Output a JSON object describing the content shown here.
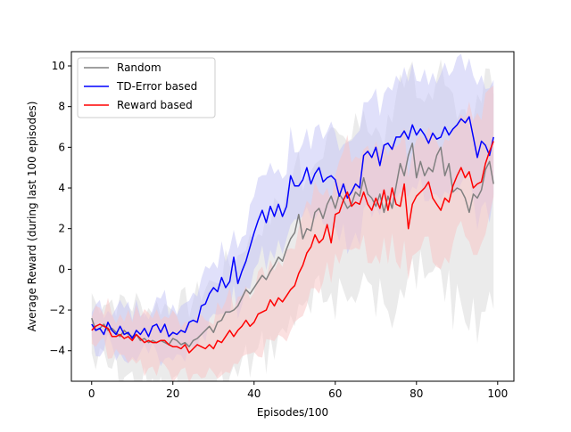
{
  "chart_data": {
    "type": "line",
    "title": "",
    "xlabel": "Episodes/100",
    "ylabel": "Average Reward (during last 100 episodes)",
    "xlim": [
      -5,
      104
    ],
    "ylim": [
      -5.5,
      10.7
    ],
    "xticks": [
      0,
      20,
      40,
      60,
      80,
      100
    ],
    "yticks": [
      -4,
      -2,
      0,
      2,
      4,
      6,
      8,
      10
    ],
    "grid": false,
    "legend_position": "top-left",
    "x": [
      0,
      1,
      2,
      3,
      4,
      5,
      6,
      7,
      8,
      9,
      10,
      11,
      12,
      13,
      14,
      15,
      16,
      17,
      18,
      19,
      20,
      21,
      22,
      23,
      24,
      25,
      26,
      27,
      28,
      29,
      30,
      31,
      32,
      33,
      34,
      35,
      36,
      37,
      38,
      39,
      40,
      41,
      42,
      43,
      44,
      45,
      46,
      47,
      48,
      49,
      50,
      51,
      52,
      53,
      54,
      55,
      56,
      57,
      58,
      59,
      60,
      61,
      62,
      63,
      64,
      65,
      66,
      67,
      68,
      69,
      70,
      71,
      72,
      73,
      74,
      75,
      76,
      77,
      78,
      79,
      80,
      81,
      82,
      83,
      84,
      85,
      86,
      87,
      88,
      89,
      90,
      91,
      92,
      93,
      94,
      95,
      96,
      97,
      98,
      99
    ],
    "series": [
      {
        "name": "Random",
        "color": "#808080",
        "band_color": "#d3d3d3",
        "values": [
          -2.4,
          -3.0,
          -2.9,
          -2.7,
          -3.0,
          -2.9,
          -3.1,
          -3.3,
          -3.0,
          -3.2,
          -3.3,
          -3.2,
          -3.5,
          -3.4,
          -3.6,
          -3.5,
          -3.6,
          -3.5,
          -3.6,
          -3.7,
          -3.4,
          -3.5,
          -3.7,
          -3.6,
          -3.8,
          -3.5,
          -3.4,
          -3.2,
          -3.0,
          -2.8,
          -3.1,
          -2.6,
          -2.5,
          -2.1,
          -2.1,
          -2.0,
          -1.8,
          -1.4,
          -1.0,
          -1.2,
          -0.9,
          -0.6,
          -0.3,
          -0.5,
          -0.1,
          0.2,
          0.6,
          0.4,
          1.0,
          1.5,
          1.8,
          2.7,
          1.5,
          2.0,
          1.9,
          2.8,
          3.0,
          2.5,
          3.2,
          3.6,
          3.0,
          3.7,
          3.4,
          3.0,
          3.2,
          3.8,
          3.6,
          4.5,
          3.7,
          3.5,
          3.1,
          3.7,
          2.8,
          3.6,
          3.0,
          4.1,
          5.2,
          4.6,
          5.6,
          6.2,
          4.5,
          5.3,
          4.6,
          5.0,
          4.8,
          5.6,
          6.0,
          4.6,
          5.2,
          3.8,
          4.0,
          3.9,
          3.5,
          2.8,
          3.7,
          3.5,
          3.9,
          4.9,
          5.3,
          4.2
        ]
      },
      {
        "name": "TD-Error based",
        "color": "#0000ff",
        "band_color": "#c6c6f5",
        "values": [
          -2.7,
          -3.0,
          -2.9,
          -3.2,
          -2.6,
          -3.0,
          -3.2,
          -2.8,
          -3.2,
          -3.1,
          -3.4,
          -3.0,
          -3.2,
          -2.9,
          -3.3,
          -2.8,
          -2.7,
          -3.1,
          -2.7,
          -3.3,
          -3.1,
          -3.2,
          -3.0,
          -3.1,
          -2.6,
          -2.5,
          -2.6,
          -1.8,
          -1.7,
          -1.2,
          -0.9,
          -1.1,
          -0.4,
          -0.9,
          -0.6,
          0.6,
          -0.7,
          -0.1,
          0.4,
          1.1,
          1.8,
          2.4,
          2.9,
          2.3,
          3.1,
          2.6,
          3.2,
          2.6,
          3.1,
          4.6,
          4.1,
          4.1,
          4.4,
          5.0,
          4.2,
          4.7,
          5.0,
          4.3,
          4.5,
          4.6,
          4.4,
          3.6,
          4.2,
          3.5,
          3.8,
          4.2,
          4.0,
          5.6,
          5.8,
          5.5,
          6.0,
          5.1,
          6.1,
          6.2,
          5.9,
          6.5,
          6.5,
          6.8,
          6.4,
          7.1,
          6.6,
          6.9,
          6.6,
          6.2,
          6.7,
          6.4,
          6.5,
          7.0,
          6.6,
          6.9,
          7.1,
          7.4,
          7.2,
          7.5,
          6.5,
          5.5,
          6.3,
          6.1,
          5.6,
          6.5
        ]
      },
      {
        "name": "Reward based",
        "color": "#ff0000",
        "band_color": "#f7c6c6",
        "values": [
          -3.0,
          -2.8,
          -2.7,
          -2.8,
          -2.9,
          -3.3,
          -3.3,
          -3.2,
          -3.4,
          -3.3,
          -3.5,
          -3.2,
          -3.4,
          -3.6,
          -3.5,
          -3.6,
          -3.6,
          -3.5,
          -3.5,
          -3.7,
          -3.8,
          -3.8,
          -3.9,
          -3.7,
          -4.1,
          -3.9,
          -3.7,
          -3.8,
          -3.9,
          -3.7,
          -3.9,
          -3.5,
          -3.6,
          -3.3,
          -3.0,
          -3.3,
          -3.0,
          -2.8,
          -2.5,
          -2.8,
          -2.6,
          -2.2,
          -2.1,
          -2.0,
          -1.5,
          -1.8,
          -1.4,
          -1.6,
          -1.3,
          -1.0,
          -0.8,
          -0.2,
          0.2,
          0.8,
          1.1,
          1.7,
          1.3,
          1.5,
          2.2,
          1.3,
          2.7,
          2.8,
          3.4,
          3.8,
          3.1,
          3.3,
          3.2,
          3.8,
          3.2,
          2.9,
          3.5,
          3.0,
          3.9,
          2.9,
          4.0,
          3.2,
          3.1,
          4.2,
          2.0,
          3.2,
          3.6,
          3.8,
          4.0,
          4.3,
          3.5,
          3.2,
          2.9,
          3.5,
          3.3,
          4.1,
          4.6,
          5.0,
          4.5,
          4.8,
          4.0,
          4.2,
          4.3,
          5.2,
          5.8,
          6.3
        ]
      }
    ]
  }
}
